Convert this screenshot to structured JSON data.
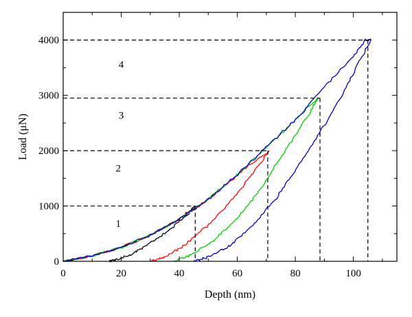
{
  "chart_data": {
    "type": "line",
    "xlabel": "Depth (nm)",
    "ylabel": "Load (μN)",
    "xlim": [
      0,
      115
    ],
    "ylim": [
      0,
      4500
    ],
    "xticks": [
      0,
      20,
      40,
      60,
      80,
      100
    ],
    "yticks": [
      0,
      1000,
      2000,
      3000,
      4000
    ],
    "grid": false,
    "annotations": [
      "1",
      "2",
      "3",
      "4"
    ],
    "series": [
      {
        "color": "#000000",
        "loading": [
          [
            0,
            0
          ],
          [
            10,
            100
          ],
          [
            20,
            250
          ],
          [
            30,
            470
          ],
          [
            40,
            760
          ],
          [
            45.5,
            1000
          ]
        ],
        "unloading": [
          [
            46,
            1000
          ],
          [
            38,
            620
          ],
          [
            30,
            330
          ],
          [
            24,
            140
          ],
          [
            18,
            25
          ],
          [
            16,
            0
          ]
        ]
      },
      {
        "color": "#ff0000",
        "loading": [
          [
            0,
            0
          ],
          [
            10,
            100
          ],
          [
            20,
            250
          ],
          [
            30,
            470
          ],
          [
            40,
            760
          ],
          [
            50,
            1120
          ],
          [
            60,
            1560
          ],
          [
            71,
            2000
          ]
        ],
        "unloading": [
          [
            71,
            2000
          ],
          [
            65,
            1560
          ],
          [
            58,
            1100
          ],
          [
            50,
            660
          ],
          [
            42,
            300
          ],
          [
            35,
            80
          ],
          [
            30,
            0
          ]
        ]
      },
      {
        "color": "#00cc00",
        "loading": [
          [
            0,
            0
          ],
          [
            10,
            100
          ],
          [
            20,
            250
          ],
          [
            30,
            470
          ],
          [
            40,
            760
          ],
          [
            50,
            1120
          ],
          [
            60,
            1560
          ],
          [
            70,
            2060
          ],
          [
            80,
            2560
          ],
          [
            88,
            2950
          ]
        ],
        "unloading": [
          [
            88,
            2950
          ],
          [
            82,
            2450
          ],
          [
            75,
            1880
          ],
          [
            68,
            1300
          ],
          [
            60,
            780
          ],
          [
            52,
            380
          ],
          [
            44,
            110
          ],
          [
            38,
            0
          ]
        ]
      },
      {
        "color": "#0000cc",
        "loading": [
          [
            0,
            0
          ],
          [
            10,
            100
          ],
          [
            20,
            250
          ],
          [
            30,
            470
          ],
          [
            40,
            760
          ],
          [
            50,
            1120
          ],
          [
            60,
            1560
          ],
          [
            70,
            2060
          ],
          [
            80,
            2560
          ],
          [
            90,
            3150
          ],
          [
            100,
            3700
          ],
          [
            104,
            4000
          ],
          [
            106,
            4000
          ]
        ],
        "unloading": [
          [
            106,
            4000
          ],
          [
            98,
            3200
          ],
          [
            90,
            2450
          ],
          [
            82,
            1800
          ],
          [
            74,
            1180
          ],
          [
            66,
            680
          ],
          [
            58,
            300
          ],
          [
            50,
            80
          ],
          [
            45,
            0
          ]
        ]
      }
    ],
    "reference_lines": [
      {
        "y": 1000,
        "x": 45.5
      },
      {
        "y": 2000,
        "x": 70.5
      },
      {
        "y": 2950,
        "x": 88.5
      },
      {
        "y": 4000,
        "x": 105
      }
    ],
    "label_positions": [
      {
        "text": "1",
        "x": 19,
        "y": 620
      },
      {
        "text": "2",
        "x": 19,
        "y": 1620
      },
      {
        "text": "3",
        "x": 20,
        "y": 2580
      },
      {
        "text": "4",
        "x": 20,
        "y": 3500
      }
    ]
  }
}
